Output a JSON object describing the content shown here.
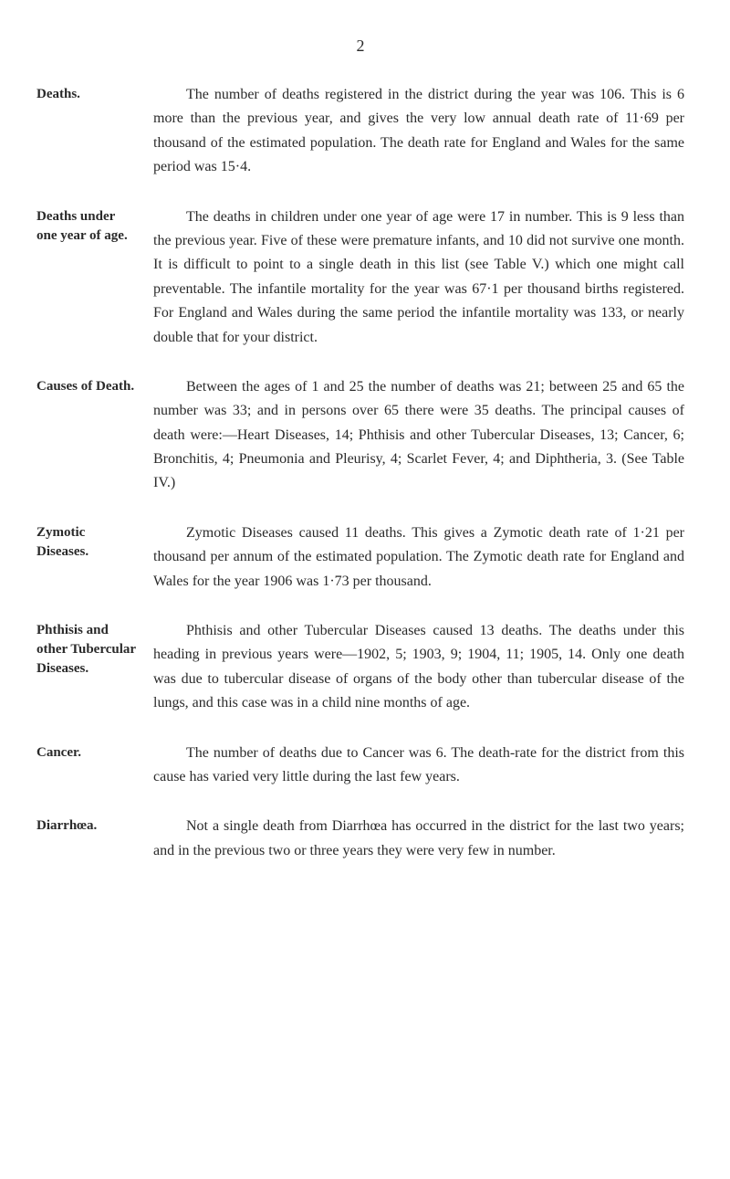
{
  "page_number": "2",
  "sections": [
    {
      "label": "Deaths.",
      "text": "The number of deaths registered in the district during the year was 106. This is 6 more than the previous year, and gives the very low annual death rate of 11·69 per thousand of the estimated population. The death rate for England and Wales for the same period was 15·4."
    },
    {
      "label": "Deaths under one year of age.",
      "text": "The deaths in children under one year of age were 17 in number. This is 9 less than the previous year. Five of these were premature infants, and 10 did not survive one month. It is difficult to point to a single death in this list (see Table V.) which one might call preventable. The infantile mortality for the year was 67·1 per thousand births registered. For England and Wales during the same period the infantile mortality was 133, or nearly double that for your district."
    },
    {
      "label": "Causes of Death.",
      "text": "Between the ages of 1 and 25 the number of deaths was 21; between 25 and 65 the number was 33; and in persons over 65 there were 35 deaths. The principal causes of death were:—Heart Diseases, 14; Phthisis and other Tubercular Diseases, 13; Cancer, 6; Bronchitis, 4; Pneumonia and Pleurisy, 4; Scarlet Fever, 4; and Diphtheria, 3. (See Table IV.)"
    },
    {
      "label": "Zymotic Diseases.",
      "text": "Zymotic Diseases caused 11 deaths. This gives a Zymotic death rate of 1·21 per thousand per annum of the estimated population. The Zymotic death rate for England and Wales for the year 1906 was 1·73 per thousand."
    },
    {
      "label": "Phthisis and other Tubercular Diseases.",
      "text": "Phthisis and other Tubercular Diseases caused 13 deaths. The deaths under this heading in previous years were—1902, 5; 1903, 9; 1904, 11; 1905, 14. Only one death was due to tubercular disease of organs of the body other than tubercular disease of the lungs, and this case was in a child nine months of age."
    },
    {
      "label": "Cancer.",
      "text": "The number of deaths due to Cancer was 6. The death-rate for the district from this cause has varied very little during the last few years."
    },
    {
      "label": "Diarrhœa.",
      "text": "Not a single death from Diarrhœa has occurred in the district for the last two years; and in the previous two or three years they were very few in number."
    }
  ]
}
